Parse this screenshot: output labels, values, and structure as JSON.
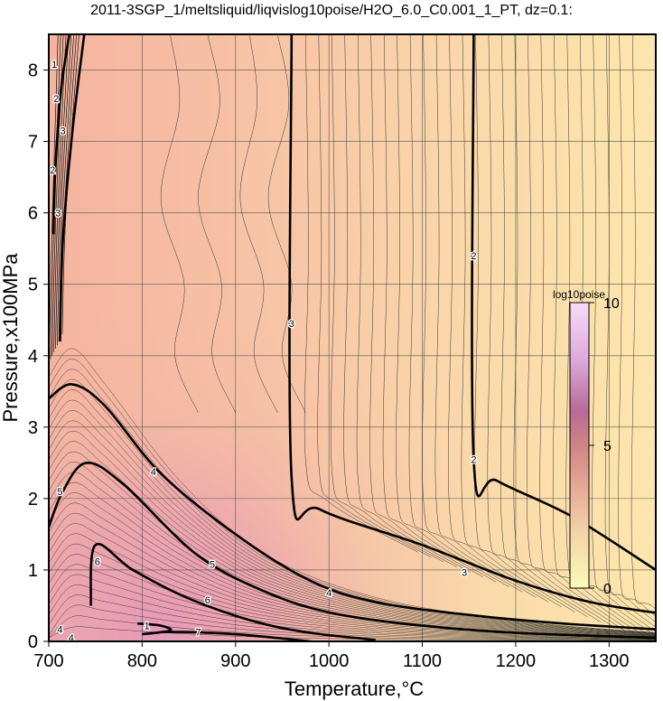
{
  "chart_data": {
    "type": "heatmap",
    "title": "2011-3SGP_1/meltsliquid/liqvislog10poise/H2O_6.0_C0.001_1_PT, dz=0.1:",
    "xlabel": "Temperature,°C",
    "ylabel": "Pressure,x100MPa",
    "xlim": [
      700,
      1350
    ],
    "ylim": [
      0,
      8.5
    ],
    "x_ticks": [
      "700",
      "800",
      "900",
      "1000",
      "1100",
      "1200",
      "1300"
    ],
    "y_ticks": [
      "0",
      "1",
      "2",
      "3",
      "4",
      "5",
      "6",
      "7",
      "8"
    ],
    "grid": true,
    "colorbar": {
      "title": "log10poise",
      "range": [
        0,
        10
      ],
      "ticks": [
        "0",
        "5",
        "10"
      ],
      "colors": [
        "#fbfbb4",
        "#f4d2a8",
        "#e8aa96",
        "#d28080",
        "#b8669a",
        "#dcaadc",
        "#f8d8f8"
      ]
    },
    "contour_labels": [
      {
        "text": "2",
        "x": 1155,
        "y": 5.4
      },
      {
        "text": "2",
        "x": 1155,
        "y": 2.55
      },
      {
        "text": "3",
        "x": 960,
        "y": 4.45
      },
      {
        "text": "3",
        "x": 1145,
        "y": 0.97
      },
      {
        "text": "3",
        "x": 715,
        "y": 7.15
      },
      {
        "text": "3",
        "x": 710,
        "y": 6.0
      },
      {
        "text": "4",
        "x": 812,
        "y": 2.38
      },
      {
        "text": "4",
        "x": 1000,
        "y": 0.68
      },
      {
        "text": "5",
        "x": 712,
        "y": 2.1
      },
      {
        "text": "5",
        "x": 875,
        "y": 1.08
      },
      {
        "text": "6",
        "x": 752,
        "y": 1.12
      },
      {
        "text": "6",
        "x": 870,
        "y": 0.58
      },
      {
        "text": "7",
        "x": 860,
        "y": 0.13
      },
      {
        "text": "1",
        "x": 805,
        "y": 0.22
      },
      {
        "text": "2",
        "x": 704,
        "y": 6.6
      },
      {
        "text": "2",
        "x": 708,
        "y": 7.6
      },
      {
        "text": "1",
        "x": 706,
        "y": 8.08
      },
      {
        "text": "4",
        "x": 712,
        "y": 0.17
      },
      {
        "text": "4",
        "x": 724,
        "y": 0.05
      }
    ],
    "major_contours": [
      {
        "level": 2,
        "points": [
          [
            1155,
            8.5
          ],
          [
            1155,
            2.55
          ],
          [
            1180,
            2.25
          ],
          [
            1260,
            1.75
          ],
          [
            1350,
            1.0
          ]
        ]
      },
      {
        "level": 3,
        "points": [
          [
            960,
            8.5
          ],
          [
            960,
            2.3
          ],
          [
            990,
            1.85
          ],
          [
            1100,
            1.35
          ],
          [
            1200,
            0.85
          ],
          [
            1280,
            0.55
          ],
          [
            1350,
            0.4
          ]
        ]
      },
      {
        "level": 4,
        "points": [
          [
            700,
            3.4
          ],
          [
            725,
            3.6
          ],
          [
            760,
            3.3
          ],
          [
            820,
            2.35
          ],
          [
            900,
            1.5
          ],
          [
            980,
            0.85
          ],
          [
            1050,
            0.55
          ],
          [
            1150,
            0.37
          ],
          [
            1250,
            0.25
          ],
          [
            1350,
            0.17
          ]
        ]
      },
      {
        "level": 5,
        "points": [
          [
            700,
            1.6
          ],
          [
            715,
            2.1
          ],
          [
            740,
            2.5
          ],
          [
            780,
            2.2
          ],
          [
            860,
            1.2
          ],
          [
            940,
            0.65
          ],
          [
            1010,
            0.38
          ],
          [
            1100,
            0.22
          ],
          [
            1200,
            0.12
          ],
          [
            1350,
            0.05
          ]
        ]
      },
      {
        "level": 6,
        "points": [
          [
            745,
            0.5
          ],
          [
            750,
            1.35
          ],
          [
            790,
            1.0
          ],
          [
            850,
            0.6
          ],
          [
            920,
            0.28
          ],
          [
            980,
            0.12
          ],
          [
            1050,
            0.02
          ]
        ]
      },
      {
        "level": 7,
        "points": [
          [
            820,
            0.13
          ],
          [
            850,
            0.13
          ],
          [
            900,
            0.1
          ],
          [
            950,
            0.04
          ],
          [
            980,
            0.0
          ]
        ]
      },
      {
        "level": 1,
        "points": [
          [
            795,
            0.25
          ],
          [
            820,
            0.22
          ],
          [
            830,
            0.15
          ],
          [
            800,
            0.1
          ]
        ]
      },
      {
        "level": 3,
        "points": [
          [
            712,
            4.2
          ],
          [
            715,
            5.6
          ],
          [
            725,
            7.1
          ],
          [
            738,
            8.5
          ]
        ]
      },
      {
        "level": 2,
        "points": [
          [
            705,
            5.7
          ],
          [
            707,
            6.6
          ],
          [
            713,
            7.7
          ],
          [
            722,
            8.5
          ]
        ]
      }
    ]
  }
}
